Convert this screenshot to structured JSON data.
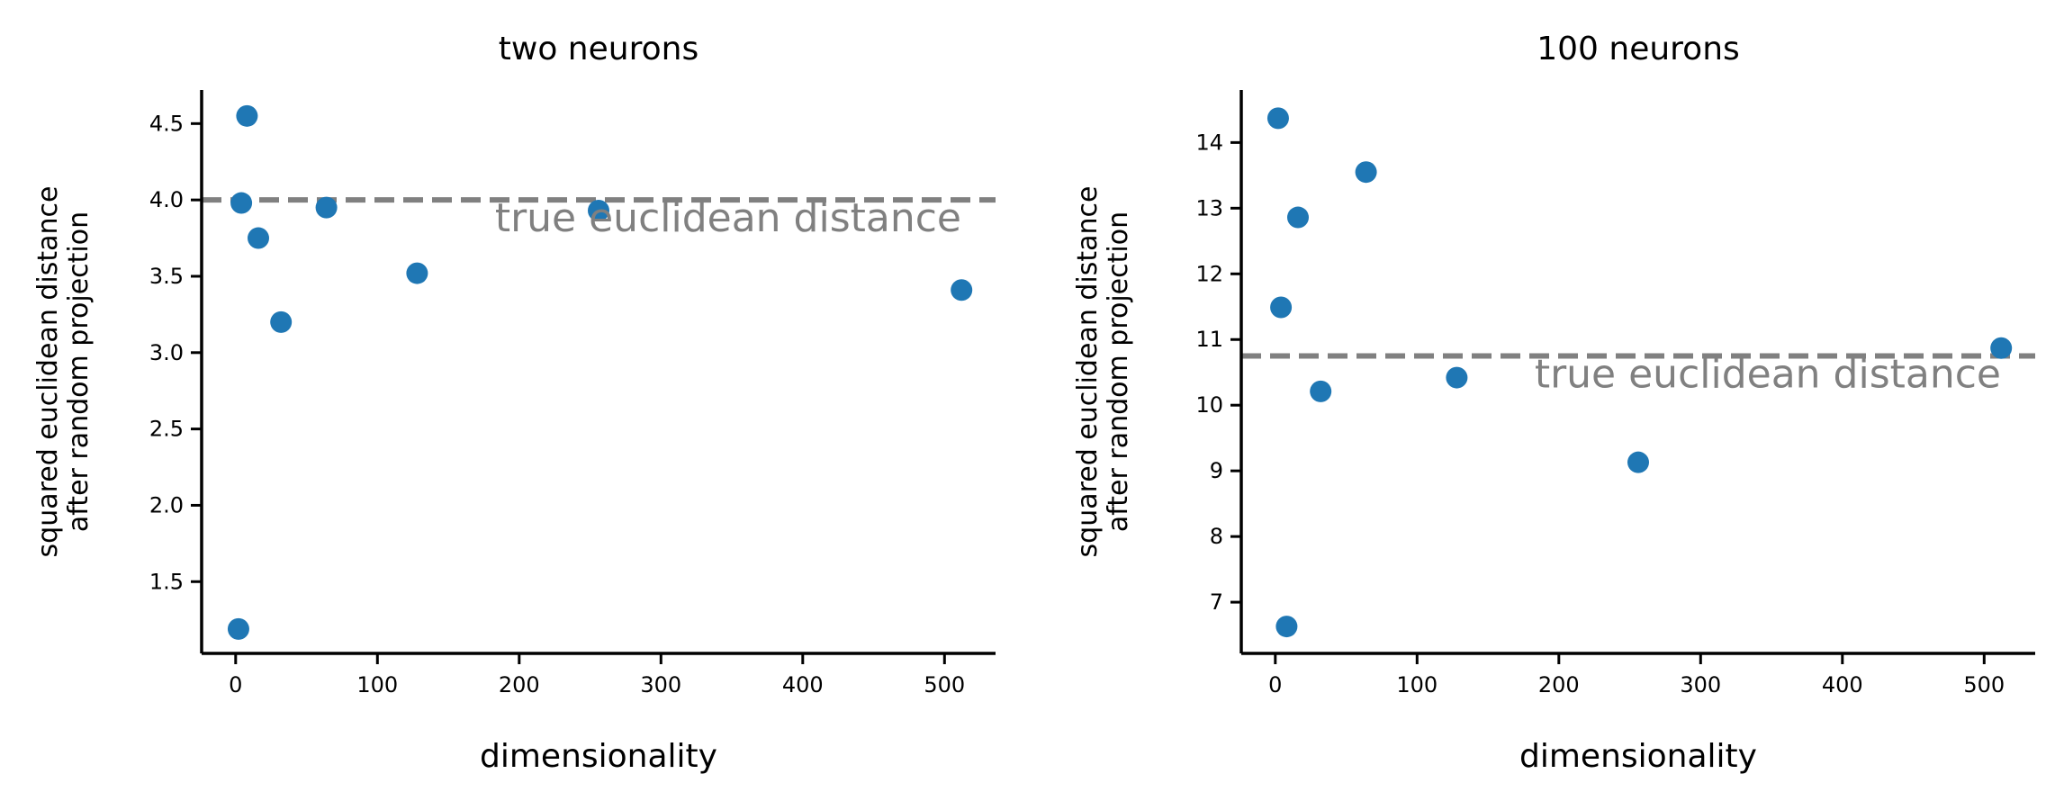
{
  "chart_data": [
    {
      "type": "scatter",
      "title": "two neurons",
      "xlabel": "dimensionality",
      "ylabel_lines": [
        "squared euclidean distance",
        "after random projection"
      ],
      "xlim": [
        -24,
        536
      ],
      "ylim": [
        1.03,
        4.72
      ],
      "xticks": [
        0,
        100,
        200,
        300,
        400,
        500
      ],
      "yticks": [
        1.5,
        2.0,
        2.5,
        3.0,
        3.5,
        4.0,
        4.5
      ],
      "ytick_decimals": 1,
      "grid": false,
      "series": [
        {
          "color": "#1f77b4",
          "points": [
            {
              "x": 2,
              "y": 1.19
            },
            {
              "x": 4,
              "y": 3.98
            },
            {
              "x": 8,
              "y": 4.55
            },
            {
              "x": 16,
              "y": 3.75
            },
            {
              "x": 32,
              "y": 3.2
            },
            {
              "x": 64,
              "y": 3.95
            },
            {
              "x": 128,
              "y": 3.52
            },
            {
              "x": 256,
              "y": 3.93
            },
            {
              "x": 512,
              "y": 3.41
            }
          ]
        }
      ],
      "reference_line": {
        "y": 4.0,
        "label": "true euclidean distance",
        "color": "#808080",
        "style": "dashed"
      }
    },
    {
      "type": "scatter",
      "title": "100 neurons",
      "xlabel": "dimensionality",
      "ylabel_lines": [
        "squared euclidean distance",
        "after random projection"
      ],
      "xlim": [
        -24,
        536
      ],
      "ylim": [
        6.22,
        14.8
      ],
      "xticks": [
        0,
        100,
        200,
        300,
        400,
        500
      ],
      "yticks": [
        7,
        8,
        9,
        10,
        11,
        12,
        13,
        14
      ],
      "ytick_decimals": 0,
      "grid": false,
      "series": [
        {
          "color": "#1f77b4",
          "points": [
            {
              "x": 2,
              "y": 14.37
            },
            {
              "x": 4,
              "y": 11.49
            },
            {
              "x": 8,
              "y": 6.63
            },
            {
              "x": 16,
              "y": 12.86
            },
            {
              "x": 32,
              "y": 10.21
            },
            {
              "x": 64,
              "y": 13.55
            },
            {
              "x": 128,
              "y": 10.42
            },
            {
              "x": 256,
              "y": 9.13
            },
            {
              "x": 512,
              "y": 10.87
            }
          ]
        }
      ],
      "reference_line": {
        "y": 10.75,
        "label": "true euclidean distance",
        "color": "#808080",
        "style": "dashed"
      }
    }
  ]
}
